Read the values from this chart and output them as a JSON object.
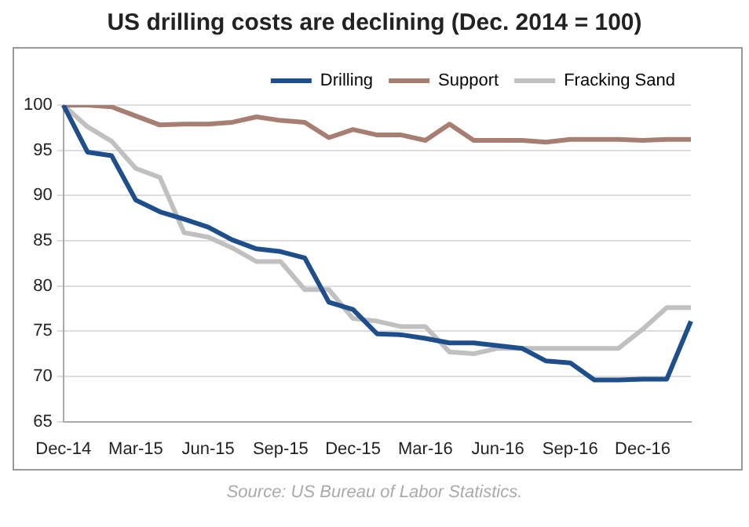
{
  "chart_data": {
    "type": "line",
    "title": "US drilling costs are declining (Dec. 2014 = 100)",
    "categories": [
      "Dec-14",
      null,
      null,
      "Mar-15",
      null,
      null,
      "Jun-15",
      null,
      null,
      "Sep-15",
      null,
      null,
      "Dec-15",
      null,
      null,
      "Mar-16",
      null,
      null,
      "Jun-16",
      null,
      null,
      "Sep-16",
      null,
      null,
      "Dec-16",
      null,
      null
    ],
    "series": [
      {
        "name": "Drilling",
        "color": "#1f4e8c",
        "values": [
          100,
          94.8,
          94.4,
          89.5,
          88.2,
          87.4,
          86.5,
          85.1,
          84.1,
          83.8,
          83.1,
          78.2,
          77.4,
          74.7,
          74.6,
          74.2,
          73.7,
          73.7,
          73.4,
          73.1,
          71.7,
          71.5,
          69.6,
          69.6,
          69.7,
          69.7,
          76.1
        ]
      },
      {
        "name": "Support",
        "color": "#a67f72",
        "values": [
          100,
          100,
          99.8,
          98.8,
          97.8,
          97.9,
          97.9,
          98.1,
          98.7,
          98.3,
          98.1,
          96.4,
          97.3,
          96.7,
          96.7,
          96.1,
          97.9,
          96.1,
          96.1,
          96.1,
          95.9,
          96.2,
          96.2,
          96.2,
          96.1,
          96.2,
          96.2
        ]
      },
      {
        "name": "Fracking Sand",
        "color": "#c0c0c0",
        "values": [
          100,
          97.6,
          96.0,
          93.0,
          92.0,
          85.9,
          85.4,
          84.2,
          82.7,
          82.7,
          79.6,
          79.6,
          76.4,
          76.1,
          75.5,
          75.5,
          72.7,
          72.5,
          73.1,
          73.1,
          73.1,
          73.1,
          73.1,
          73.1,
          75.2,
          77.6,
          77.6
        ]
      }
    ],
    "ylim": [
      65,
      100
    ],
    "yticks": [
      65,
      70,
      75,
      80,
      85,
      90,
      95,
      100
    ],
    "grid": "y",
    "legend": "top right",
    "marker": "none",
    "line_style": "solid",
    "annotations": [
      "Source:  US Bureau of Labor Statistics."
    ]
  }
}
